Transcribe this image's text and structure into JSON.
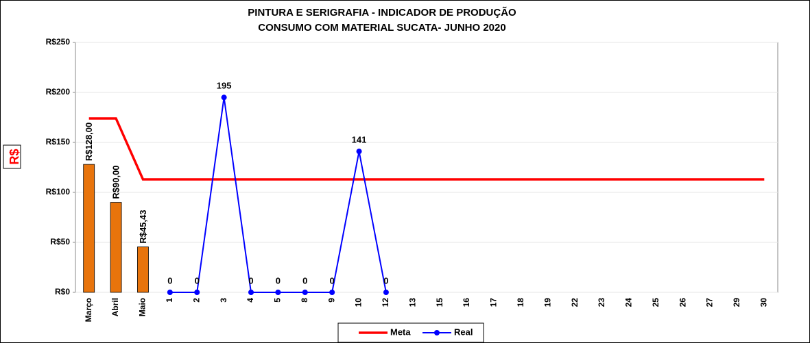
{
  "chart_data": {
    "type": "line",
    "title": [
      "PINTURA E SERIGRAFIA - INDICADOR DE  PRODUÇÃO",
      "CONSUMO COM MATERIAL SUCATA-  JUNHO 2020"
    ],
    "yaxis_label": "R$",
    "categories": [
      "Março",
      "Abril",
      "Maio",
      "1",
      "2",
      "3",
      "4",
      "5",
      "8",
      "9",
      "10",
      "12",
      "13",
      "15",
      "16",
      "17",
      "18",
      "19",
      "22",
      "23",
      "24",
      "25",
      "26",
      "27",
      "29",
      "30"
    ],
    "bars": {
      "color": "#e8740c",
      "values": [
        128,
        90,
        45.43
      ],
      "value_labels": [
        "R$128,00",
        "R$90,00",
        "R$45,43"
      ]
    },
    "series": [
      {
        "name": "Meta",
        "color": "#ff0000",
        "values": [
          174,
          174,
          113,
          113,
          113,
          113,
          113,
          113,
          113,
          113,
          113,
          113,
          113,
          113,
          113,
          113,
          113,
          113,
          113,
          113,
          113,
          113,
          113,
          113,
          113,
          113
        ]
      },
      {
        "name": "Real",
        "color": "#0000ff",
        "values": [
          null,
          null,
          null,
          0,
          0,
          195,
          0,
          0,
          0,
          0,
          141,
          0,
          null,
          null,
          null,
          null,
          null,
          null,
          null,
          null,
          null,
          null,
          null,
          null,
          null,
          null
        ]
      }
    ],
    "ylim": [
      0,
      250
    ],
    "yticks": [
      {
        "value": 0,
        "label": "R$0"
      },
      {
        "value": 50,
        "label": "R$50"
      },
      {
        "value": 100,
        "label": "R$100"
      },
      {
        "value": 150,
        "label": "R$150"
      },
      {
        "value": 200,
        "label": "R$200"
      },
      {
        "value": 250,
        "label": "R$250"
      }
    ],
    "grid": true,
    "legend": "bottom"
  }
}
